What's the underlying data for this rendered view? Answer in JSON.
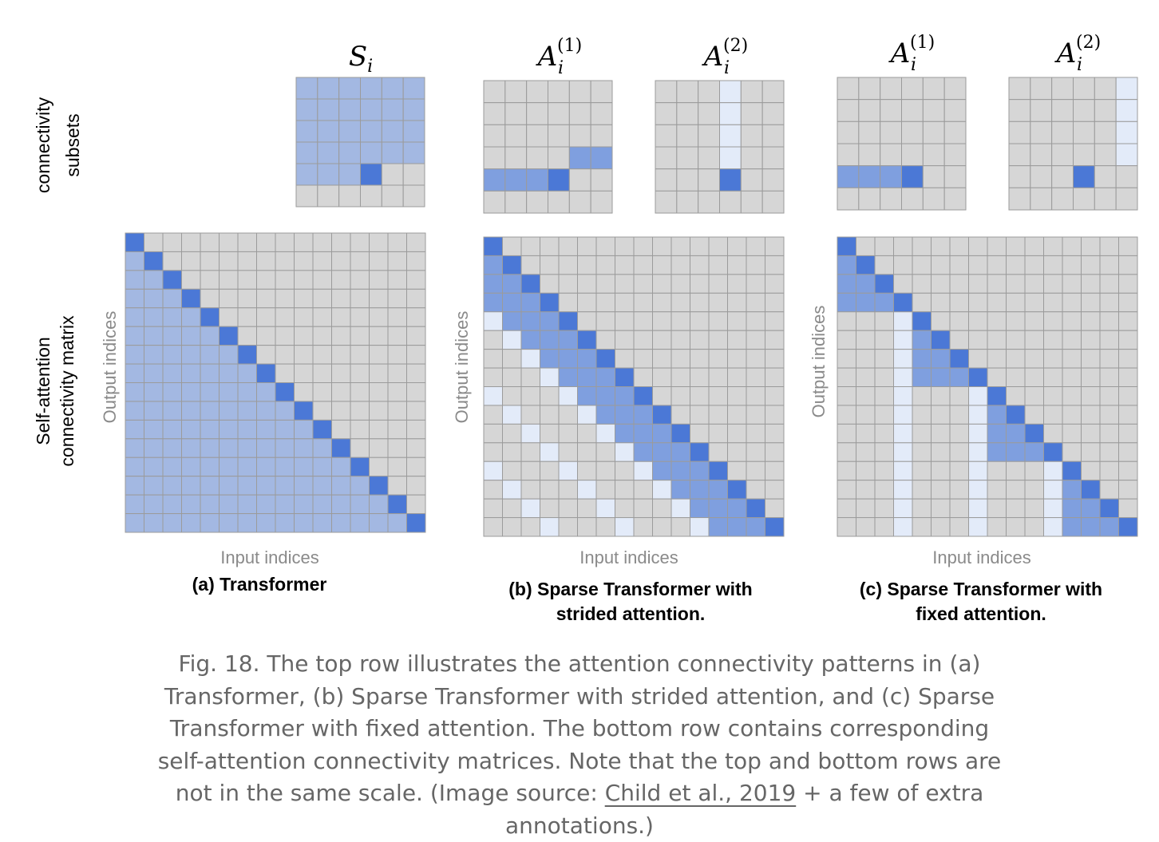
{
  "row_labels": {
    "top": [
      "connectivity",
      "subsets"
    ],
    "bottom": [
      "Self-attention",
      "connectivity matrix"
    ]
  },
  "axis_labels": {
    "x": "Input indices",
    "y": "Output indices"
  },
  "column_titles": {
    "S": {
      "base": "S",
      "sub": "i",
      "sup": ""
    },
    "A1": {
      "base": "A",
      "sub": "i",
      "sup": "(1)"
    },
    "A2": {
      "base": "A",
      "sub": "i",
      "sup": "(2)"
    }
  },
  "panel_titles": {
    "a": [
      "(a) Transformer"
    ],
    "b": [
      "(b) Sparse Transformer with",
      "strided attention."
    ],
    "c": [
      "(c) Sparse Transformer with",
      "fixed attention."
    ]
  },
  "caption": {
    "before_link": "Fig. 18. The top row illustrates the attention connectivity patterns in (a) Transformer, (b) Sparse Transformer with strided attention, and (c) Sparse Transformer with fixed attention. The bottom row contains corresponding self-attention connectivity matrices. Note that the top and bottom rows are not in the same scale. (Image source: ",
    "link_text": "Child et al., 2019",
    "after_link": " + a few of extra annotations.)"
  },
  "colors": {
    "grid_bg": "#d6d6d6",
    "grid_line": "#9b9b9b",
    "diagonal": "#4b78d6",
    "full_attention": "#a3b8e2",
    "strided_local": "#7f9fdf",
    "strided_column": "#e3ebf9",
    "label_gray": "#8a8a8a"
  },
  "matrices": {
    "transformer_size": 16,
    "strided_size": 16,
    "strided_stride": 4,
    "fixed_size": 16,
    "fixed_block": 4
  }
}
